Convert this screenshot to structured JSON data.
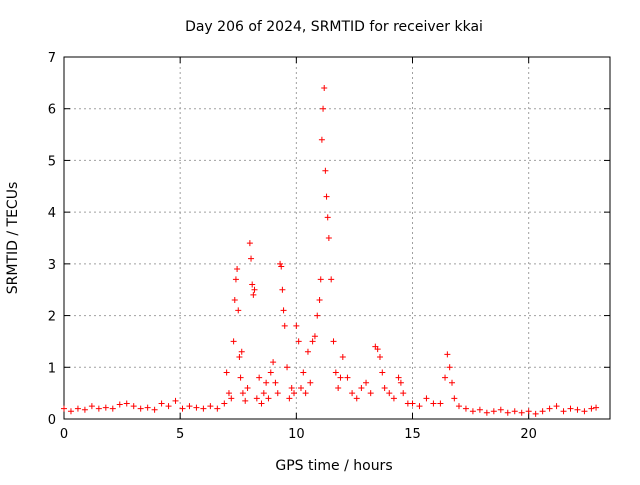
{
  "chart_data": {
    "type": "scatter",
    "title": "Day 206 of 2024, SRMTID for receiver kkai",
    "xlabel": "GPS time / hours",
    "ylabel": "SRMTID / TECUs",
    "xlim": [
      0,
      23.5
    ],
    "ylim": [
      0,
      7
    ],
    "x_ticks": [
      0,
      5,
      10,
      15,
      20
    ],
    "y_ticks": [
      0,
      1,
      2,
      3,
      4,
      5,
      6,
      7
    ],
    "x_tick_labels": [
      "0",
      "5",
      "10",
      "15",
      "20"
    ],
    "y_tick_labels": [
      "0",
      "1",
      "2",
      "3",
      "4",
      "5",
      "6",
      "7"
    ],
    "grid": true,
    "marker": "+",
    "series": [
      {
        "name": "SRMTID",
        "color": "#ff0000",
        "x": [
          0.0,
          0.3,
          0.6,
          0.9,
          1.2,
          1.5,
          1.8,
          2.1,
          2.4,
          2.7,
          3.0,
          3.3,
          3.6,
          3.9,
          4.2,
          4.5,
          4.8,
          5.1,
          5.4,
          5.7,
          6.0,
          6.3,
          6.6,
          6.9,
          7.0,
          7.1,
          7.2,
          7.3,
          7.35,
          7.4,
          7.45,
          7.5,
          7.55,
          7.6,
          7.65,
          7.7,
          7.8,
          7.9,
          8.0,
          8.05,
          8.1,
          8.15,
          8.2,
          8.3,
          8.4,
          8.5,
          8.6,
          8.7,
          8.8,
          8.9,
          9.0,
          9.1,
          9.2,
          9.3,
          9.35,
          9.4,
          9.45,
          9.5,
          9.6,
          9.7,
          9.8,
          9.9,
          10.0,
          10.1,
          10.2,
          10.3,
          10.4,
          10.5,
          10.6,
          10.7,
          10.8,
          10.9,
          11.0,
          11.05,
          11.1,
          11.15,
          11.2,
          11.25,
          11.3,
          11.35,
          11.4,
          11.5,
          11.6,
          11.7,
          11.8,
          11.9,
          12.0,
          12.2,
          12.4,
          12.6,
          12.8,
          13.0,
          13.2,
          13.4,
          13.5,
          13.6,
          13.7,
          13.8,
          14.0,
          14.2,
          14.4,
          14.5,
          14.6,
          14.8,
          15.0,
          15.3,
          15.6,
          15.9,
          16.2,
          16.4,
          16.5,
          16.6,
          16.7,
          16.8,
          17.0,
          17.3,
          17.6,
          17.9,
          18.2,
          18.5,
          18.8,
          19.1,
          19.4,
          19.7,
          20.0,
          20.3,
          20.6,
          20.9,
          21.2,
          21.5,
          21.8,
          22.1,
          22.4,
          22.7,
          22.9
        ],
        "y": [
          0.2,
          0.15,
          0.2,
          0.18,
          0.25,
          0.2,
          0.22,
          0.2,
          0.28,
          0.3,
          0.25,
          0.2,
          0.22,
          0.18,
          0.3,
          0.25,
          0.35,
          0.2,
          0.25,
          0.22,
          0.2,
          0.25,
          0.2,
          0.3,
          0.9,
          0.5,
          0.4,
          1.5,
          2.3,
          2.7,
          2.9,
          2.1,
          1.2,
          0.8,
          1.3,
          0.5,
          0.35,
          0.6,
          3.4,
          3.1,
          2.6,
          2.4,
          2.5,
          0.4,
          0.8,
          0.3,
          0.5,
          0.7,
          0.4,
          0.9,
          1.1,
          0.7,
          0.5,
          3.0,
          2.95,
          2.5,
          2.1,
          1.8,
          1.0,
          0.4,
          0.6,
          0.5,
          1.8,
          1.5,
          0.6,
          0.9,
          0.5,
          1.3,
          0.7,
          1.5,
          1.6,
          2.0,
          2.3,
          2.7,
          5.4,
          6.0,
          6.4,
          4.8,
          4.3,
          3.9,
          3.5,
          2.7,
          1.5,
          0.9,
          0.6,
          0.8,
          1.2,
          0.8,
          0.5,
          0.4,
          0.6,
          0.7,
          0.5,
          1.4,
          1.35,
          1.2,
          0.9,
          0.6,
          0.5,
          0.4,
          0.8,
          0.7,
          0.5,
          0.3,
          0.3,
          0.25,
          0.4,
          0.3,
          0.3,
          0.8,
          1.25,
          1.0,
          0.7,
          0.4,
          0.25,
          0.2,
          0.15,
          0.18,
          0.12,
          0.15,
          0.18,
          0.12,
          0.15,
          0.12,
          0.15,
          0.1,
          0.15,
          0.2,
          0.25,
          0.15,
          0.2,
          0.18,
          0.15,
          0.2,
          0.22
        ]
      }
    ]
  }
}
